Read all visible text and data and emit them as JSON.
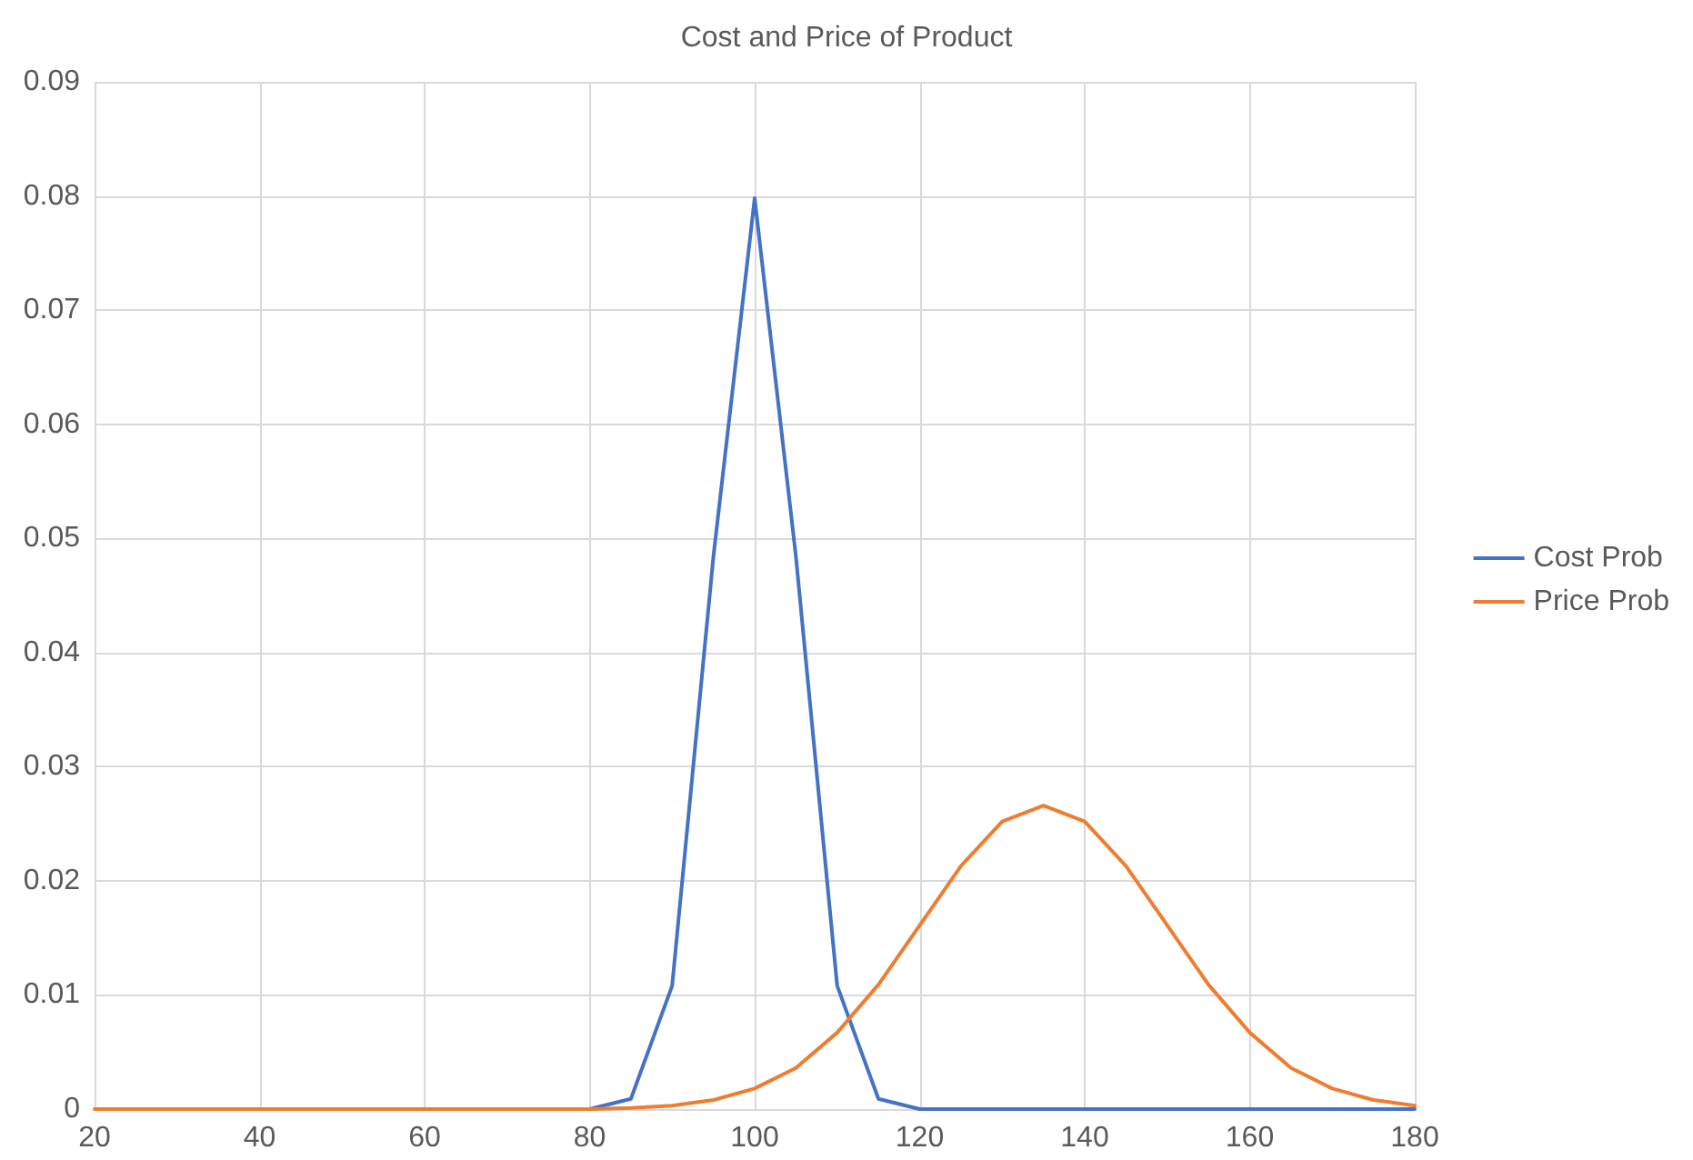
{
  "chart_data": {
    "type": "line",
    "title": "Cost and Price of Product",
    "x": [
      20,
      25,
      30,
      35,
      40,
      45,
      50,
      55,
      60,
      65,
      70,
      75,
      80,
      85,
      90,
      95,
      100,
      105,
      110,
      115,
      120,
      125,
      130,
      135,
      140,
      145,
      150,
      155,
      160,
      165,
      170,
      175,
      180
    ],
    "series": [
      {
        "name": "Cost Prob",
        "color": "#4472c4",
        "values": [
          null,
          null,
          null,
          null,
          null,
          null,
          null,
          null,
          null,
          null,
          null,
          0,
          0,
          0.0009,
          0.0108,
          0.0484,
          0.0798,
          0.0484,
          0.0108,
          0.0009,
          0,
          0,
          0,
          0,
          0,
          0,
          0,
          0,
          0,
          0,
          0,
          0,
          0
        ]
      },
      {
        "name": "Price Prob",
        "color": "#ed7d31",
        "values": [
          0,
          0,
          0,
          0,
          0,
          0,
          0,
          0,
          0,
          0,
          0,
          0,
          0,
          0.0001,
          0.0003,
          0.0008,
          0.0018,
          0.0036,
          0.0067,
          0.0109,
          0.0161,
          0.0213,
          0.0252,
          0.0266,
          0.0252,
          0.0213,
          0.0161,
          0.0109,
          0.0067,
          0.0036,
          0.0018,
          0.0008,
          0.0003
        ]
      }
    ],
    "xlim": [
      20,
      180
    ],
    "xticks": [
      20,
      40,
      60,
      80,
      100,
      120,
      140,
      160,
      180
    ],
    "ylim": [
      0,
      0.09
    ],
    "yticks": [
      0,
      0.01,
      0.02,
      0.03,
      0.04,
      0.05,
      0.06,
      0.07,
      0.08,
      0.09
    ],
    "grid": true,
    "legend": "right",
    "marker": "none",
    "line_style": "solid"
  }
}
